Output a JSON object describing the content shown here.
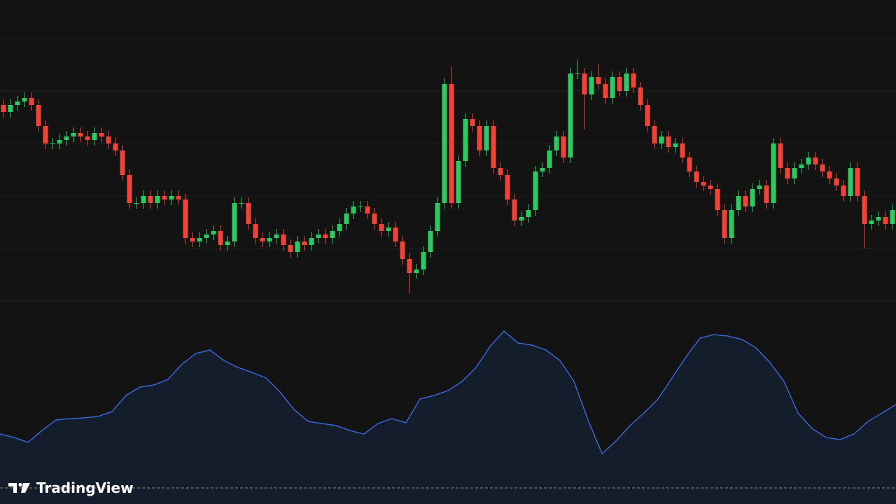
{
  "chart_data": [
    {
      "type": "candlestick",
      "up_color": "#2fc863",
      "down_color": "#f04438",
      "ylim": [
        0,
        450
      ],
      "yticks": [
        20,
        95,
        170,
        245,
        320,
        395
      ],
      "grid": true,
      "open": [
        300,
        290,
        300,
        305,
        310,
        300,
        270,
        245,
        245,
        250,
        255,
        260,
        255,
        250,
        260,
        255,
        245,
        235,
        200,
        160,
        160,
        170,
        160,
        170,
        165,
        170,
        165,
        110,
        105,
        110,
        115,
        120,
        100,
        105,
        160,
        160,
        130,
        110,
        105,
        110,
        115,
        100,
        90,
        105,
        100,
        110,
        115,
        110,
        120,
        130,
        145,
        155,
        155,
        145,
        130,
        120,
        125,
        105,
        80,
        60,
        65,
        90,
        120,
        160,
        330,
        160,
        220,
        280,
        270,
        235,
        270,
        210,
        200,
        165,
        135,
        140,
        150,
        205,
        210,
        235,
        255,
        225,
        345,
        345,
        315,
        340,
        330,
        310,
        340,
        320,
        345,
        325,
        300,
        270,
        245,
        255,
        240,
        245,
        225,
        205,
        190,
        185,
        180,
        150,
        110,
        150,
        170,
        155,
        180,
        185,
        160,
        245,
        210,
        195,
        210,
        215,
        225,
        215,
        205,
        195,
        185,
        170,
        210,
        170,
        130,
        135,
        140,
        130
      ],
      "high": [
        308,
        308,
        313,
        318,
        318,
        308,
        278,
        253,
        258,
        263,
        268,
        268,
        263,
        268,
        268,
        263,
        253,
        243,
        208,
        168,
        178,
        178,
        178,
        178,
        178,
        178,
        173,
        118,
        118,
        123,
        128,
        128,
        113,
        168,
        168,
        168,
        138,
        118,
        118,
        123,
        123,
        108,
        113,
        113,
        118,
        123,
        123,
        128,
        138,
        153,
        163,
        163,
        163,
        153,
        138,
        133,
        133,
        113,
        88,
        73,
        98,
        128,
        168,
        338,
        355,
        228,
        288,
        288,
        278,
        278,
        278,
        218,
        208,
        173,
        148,
        158,
        213,
        218,
        243,
        263,
        263,
        353,
        365,
        353,
        348,
        358,
        338,
        348,
        348,
        353,
        353,
        333,
        308,
        278,
        263,
        263,
        253,
        253,
        233,
        213,
        198,
        193,
        188,
        158,
        158,
        178,
        178,
        188,
        193,
        193,
        253,
        253,
        218,
        218,
        223,
        233,
        233,
        223,
        213,
        203,
        193,
        218,
        218,
        178,
        143,
        148,
        148,
        158
      ],
      "low": [
        282,
        282,
        292,
        297,
        292,
        262,
        237,
        237,
        237,
        242,
        247,
        247,
        242,
        242,
        247,
        237,
        227,
        192,
        152,
        152,
        152,
        152,
        152,
        157,
        157,
        157,
        102,
        97,
        97,
        102,
        107,
        92,
        92,
        97,
        152,
        122,
        102,
        97,
        97,
        102,
        92,
        82,
        82,
        92,
        92,
        102,
        102,
        102,
        112,
        122,
        137,
        147,
        137,
        122,
        112,
        112,
        97,
        72,
        30,
        52,
        57,
        82,
        112,
        152,
        152,
        152,
        212,
        262,
        227,
        227,
        202,
        192,
        157,
        127,
        127,
        132,
        142,
        197,
        202,
        227,
        217,
        217,
        337,
        265,
        307,
        322,
        302,
        302,
        312,
        312,
        317,
        292,
        262,
        237,
        237,
        232,
        232,
        217,
        197,
        182,
        177,
        172,
        142,
        102,
        102,
        142,
        147,
        147,
        172,
        152,
        152,
        202,
        187,
        187,
        202,
        207,
        207,
        197,
        187,
        177,
        162,
        162,
        162,
        95,
        122,
        127,
        122,
        122
      ],
      "close": [
        290,
        300,
        305,
        310,
        300,
        270,
        245,
        245,
        250,
        255,
        260,
        255,
        250,
        260,
        255,
        245,
        235,
        200,
        160,
        160,
        170,
        160,
        170,
        165,
        170,
        165,
        110,
        105,
        110,
        115,
        120,
        100,
        105,
        160,
        160,
        130,
        110,
        105,
        110,
        115,
        100,
        90,
        105,
        100,
        110,
        115,
        110,
        120,
        130,
        145,
        155,
        155,
        145,
        130,
        120,
        125,
        105,
        80,
        60,
        65,
        90,
        120,
        160,
        330,
        160,
        220,
        280,
        270,
        235,
        270,
        210,
        200,
        165,
        135,
        140,
        150,
        205,
        210,
        235,
        255,
        225,
        345,
        345,
        315,
        340,
        330,
        310,
        340,
        320,
        345,
        325,
        300,
        270,
        245,
        255,
        240,
        245,
        225,
        205,
        190,
        185,
        180,
        150,
        110,
        150,
        170,
        155,
        180,
        185,
        160,
        245,
        210,
        195,
        210,
        215,
        225,
        215,
        205,
        195,
        185,
        170,
        210,
        170,
        130,
        135,
        140,
        130,
        150
      ]
    },
    {
      "type": "area",
      "color": "#3b63d1",
      "fill": "#141d2c",
      "ylim": [
        0,
        250
      ],
      "values": [
        80,
        75,
        68,
        85,
        100,
        102,
        103,
        105,
        112,
        135,
        147,
        150,
        158,
        180,
        195,
        200,
        185,
        175,
        168,
        160,
        140,
        115,
        98,
        95,
        92,
        85,
        80,
        95,
        102,
        96,
        130,
        135,
        142,
        155,
        175,
        205,
        227,
        210,
        207,
        200,
        185,
        155,
        100,
        52,
        70,
        92,
        110,
        130,
        160,
        190,
        217,
        222,
        220,
        215,
        203,
        182,
        155,
        110,
        88,
        75,
        72,
        80,
        98,
        110,
        122
      ]
    }
  ],
  "logo_text": "TradingView"
}
